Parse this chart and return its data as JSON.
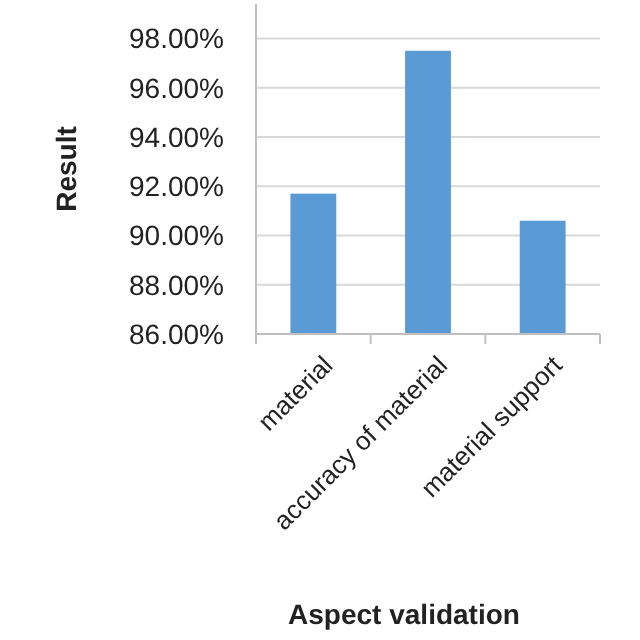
{
  "chart_data": {
    "type": "bar",
    "xlabel": "Aspect validation",
    "ylabel": "Result",
    "categories": [
      "material",
      "accuracy of material",
      "material support"
    ],
    "values": [
      91.7,
      97.5,
      90.6
    ],
    "color": "#5b9bd5",
    "ylim": [
      86,
      99.4
    ],
    "yticks": [
      {
        "value": 86,
        "label": "86.00%"
      },
      {
        "value": 88,
        "label": "88.00%"
      },
      {
        "value": 90,
        "label": "90.00%"
      },
      {
        "value": 92,
        "label": "92.00%"
      },
      {
        "value": 94,
        "label": "94.00%"
      },
      {
        "value": 96,
        "label": "96.00%"
      },
      {
        "value": 98,
        "label": "98.00%"
      }
    ],
    "grid": "y"
  }
}
